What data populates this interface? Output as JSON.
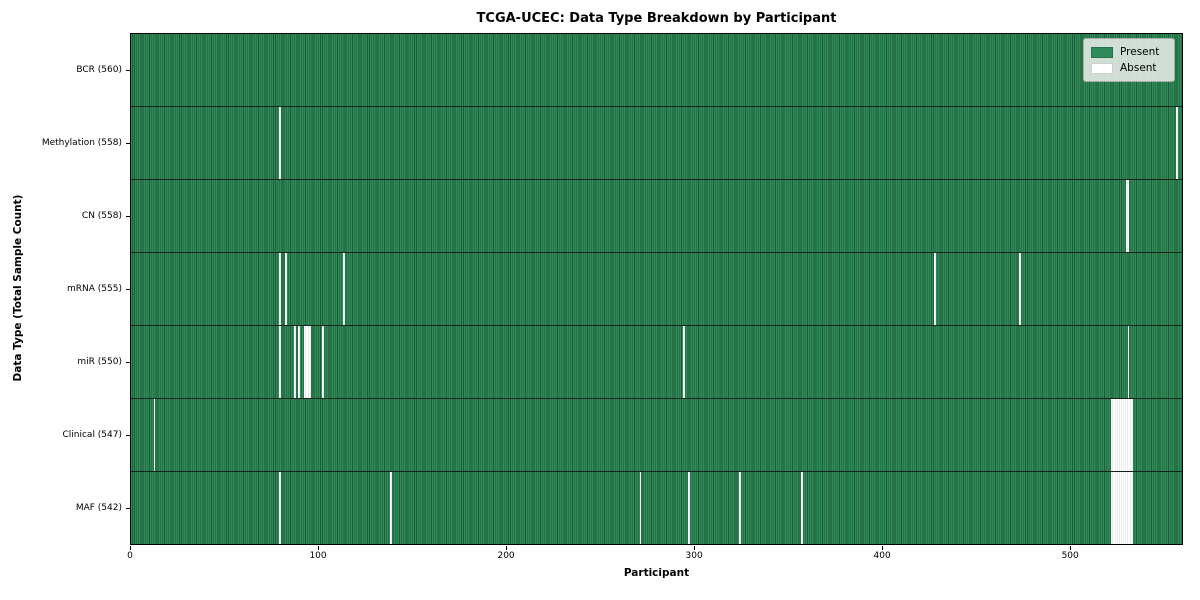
{
  "title": "TCGA-UCEC: Data Type Breakdown by Participant",
  "xlabel": "Participant",
  "ylabel": "Data Type (Total Sample Count)",
  "legend": {
    "present_label": "Present",
    "absent_label": "Absent"
  },
  "colors": {
    "present": "#2e8b57",
    "present_edge": "#1e5b39",
    "absent": "#ffffff",
    "absent_edge": "#d8d8d8",
    "row_divider": "#10231a",
    "legend_bg": "#edf0ed"
  },
  "chart_data": {
    "type": "heatmap",
    "title": "TCGA-UCEC: Data Type Breakdown by Participant",
    "xlabel": "Participant",
    "ylabel": "Data Type (Total Sample Count)",
    "x_participant_total": 560,
    "xlim": [
      0,
      560
    ],
    "x_ticks": [
      0,
      100,
      200,
      300,
      400,
      500
    ],
    "grid": false,
    "legend_position": "upper right",
    "legend_entries": [
      "Present",
      "Absent"
    ],
    "rows": [
      {
        "label": "BCR (560)",
        "present_count": 560,
        "absent_participants": []
      },
      {
        "label": "Methylation (558)",
        "present_count": 558,
        "absent_participants": [
          79,
          557
        ]
      },
      {
        "label": "CN (558)",
        "present_count": 558,
        "absent_participants": [
          530,
          531
        ]
      },
      {
        "label": "mRNA (555)",
        "present_count": 555,
        "absent_participants": [
          79,
          82,
          113,
          428,
          473
        ]
      },
      {
        "label": "miR (550)",
        "present_count": 550,
        "absent_participants": [
          79,
          87,
          89,
          92,
          93,
          94,
          95,
          102,
          294,
          531
        ]
      },
      {
        "label": "Clinical (547)",
        "present_count": 547,
        "absent_participants": [
          12,
          522,
          523,
          524,
          525,
          526,
          527,
          528,
          529,
          530,
          531,
          532,
          533
        ]
      },
      {
        "label": "MAF (542)",
        "present_count": 542,
        "absent_participants": [
          79,
          138,
          271,
          297,
          324,
          357,
          522,
          523,
          524,
          525,
          526,
          527,
          528,
          529,
          530,
          531,
          532,
          533
        ]
      }
    ]
  }
}
